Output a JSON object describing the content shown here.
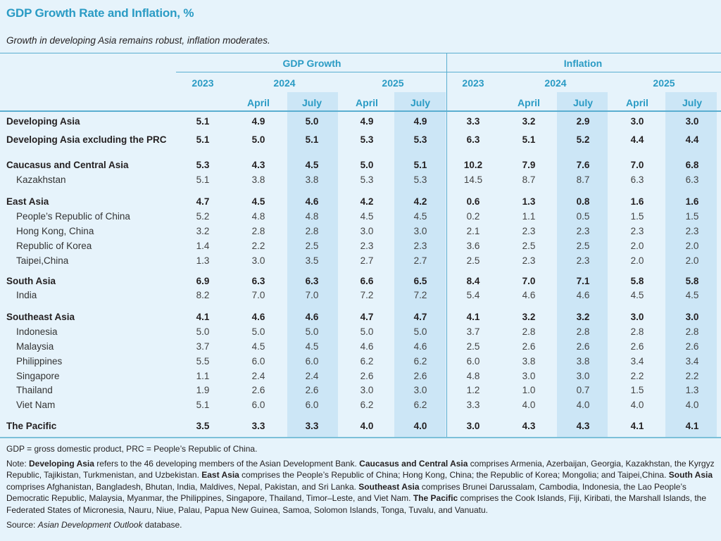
{
  "title": "GDP Growth Rate and Inflation, %",
  "subtitle": "Growth in developing Asia remains robust, inflation moderates.",
  "colors": {
    "accent": "#2a9bc4",
    "background": "#e6f3fb",
    "highlight": "#cce6f6",
    "rule": "#5aaed0"
  },
  "header": {
    "groups": [
      "GDP Growth",
      "Inflation"
    ],
    "years": [
      "2023",
      "2024",
      "2025",
      "2023",
      "2024",
      "2025"
    ],
    "months": [
      "April",
      "July",
      "April",
      "July",
      "April",
      "July",
      "April",
      "July"
    ]
  },
  "rows": [
    {
      "label": "Developing Asia",
      "level": "region",
      "values": [
        "5.1",
        "4.9",
        "5.0",
        "4.9",
        "4.9",
        "3.3",
        "3.2",
        "2.9",
        "3.0",
        "3.0"
      ]
    },
    {
      "label": "Developing Asia excluding the PRC",
      "level": "region",
      "values": [
        "5.1",
        "5.0",
        "5.1",
        "5.3",
        "5.3",
        "6.3",
        "5.1",
        "5.2",
        "4.4",
        "4.4"
      ]
    },
    {
      "label": "Caucasus and Central Asia",
      "level": "region",
      "values": [
        "5.3",
        "4.3",
        "4.5",
        "5.0",
        "5.1",
        "10.2",
        "7.9",
        "7.6",
        "7.0",
        "6.8"
      ]
    },
    {
      "label": "Kazakhstan",
      "level": "economy",
      "values": [
        "5.1",
        "3.8",
        "3.8",
        "5.3",
        "5.3",
        "14.5",
        "8.7",
        "8.7",
        "6.3",
        "6.3"
      ]
    },
    {
      "label": "East Asia",
      "level": "region",
      "values": [
        "4.7",
        "4.5",
        "4.6",
        "4.2",
        "4.2",
        "0.6",
        "1.3",
        "0.8",
        "1.6",
        "1.6"
      ]
    },
    {
      "label": "People’s Republic of China",
      "level": "economy",
      "values": [
        "5.2",
        "4.8",
        "4.8",
        "4.5",
        "4.5",
        "0.2",
        "1.1",
        "0.5",
        "1.5",
        "1.5"
      ]
    },
    {
      "label": "Hong Kong, China",
      "level": "economy",
      "values": [
        "3.2",
        "2.8",
        "2.8",
        "3.0",
        "3.0",
        "2.1",
        "2.3",
        "2.3",
        "2.3",
        "2.3"
      ]
    },
    {
      "label": "Republic of Korea",
      "level": "economy",
      "values": [
        "1.4",
        "2.2",
        "2.5",
        "2.3",
        "2.3",
        "3.6",
        "2.5",
        "2.5",
        "2.0",
        "2.0"
      ]
    },
    {
      "label": "Taipei,China",
      "level": "economy",
      "values": [
        "1.3",
        "3.0",
        "3.5",
        "2.7",
        "2.7",
        "2.5",
        "2.3",
        "2.3",
        "2.0",
        "2.0"
      ]
    },
    {
      "label": "South Asia",
      "level": "region",
      "values": [
        "6.9",
        "6.3",
        "6.3",
        "6.6",
        "6.5",
        "8.4",
        "7.0",
        "7.1",
        "5.8",
        "5.8"
      ]
    },
    {
      "label": "India",
      "level": "economy",
      "values": [
        "8.2",
        "7.0",
        "7.0",
        "7.2",
        "7.2",
        "5.4",
        "4.6",
        "4.6",
        "4.5",
        "4.5"
      ]
    },
    {
      "label": "Southeast Asia",
      "level": "region",
      "values": [
        "4.1",
        "4.6",
        "4.6",
        "4.7",
        "4.7",
        "4.1",
        "3.2",
        "3.2",
        "3.0",
        "3.0"
      ]
    },
    {
      "label": "Indonesia",
      "level": "economy",
      "values": [
        "5.0",
        "5.0",
        "5.0",
        "5.0",
        "5.0",
        "3.7",
        "2.8",
        "2.8",
        "2.8",
        "2.8"
      ]
    },
    {
      "label": "Malaysia",
      "level": "economy",
      "values": [
        "3.7",
        "4.5",
        "4.5",
        "4.6",
        "4.6",
        "2.5",
        "2.6",
        "2.6",
        "2.6",
        "2.6"
      ]
    },
    {
      "label": "Philippines",
      "level": "economy",
      "values": [
        "5.5",
        "6.0",
        "6.0",
        "6.2",
        "6.2",
        "6.0",
        "3.8",
        "3.8",
        "3.4",
        "3.4"
      ]
    },
    {
      "label": "Singapore",
      "level": "economy",
      "values": [
        "1.1",
        "2.4",
        "2.4",
        "2.6",
        "2.6",
        "4.8",
        "3.0",
        "3.0",
        "2.2",
        "2.2"
      ]
    },
    {
      "label": "Thailand",
      "level": "economy",
      "values": [
        "1.9",
        "2.6",
        "2.6",
        "3.0",
        "3.0",
        "1.2",
        "1.0",
        "0.7",
        "1.5",
        "1.3"
      ]
    },
    {
      "label": "Viet Nam",
      "level": "economy",
      "values": [
        "5.1",
        "6.0",
        "6.0",
        "6.2",
        "6.2",
        "3.3",
        "4.0",
        "4.0",
        "4.0",
        "4.0"
      ]
    },
    {
      "label": "The Pacific",
      "level": "region",
      "values": [
        "3.5",
        "3.3",
        "3.3",
        "4.0",
        "4.0",
        "3.0",
        "4.3",
        "4.3",
        "4.1",
        "4.1"
      ]
    }
  ],
  "notes": {
    "abbreviations": "GDP = gross domestic product, PRC = People’s Republic of China.",
    "note_prefix": "Note: ",
    "note_parts": [
      {
        "bold": "Developing Asia",
        "text": " refers to the 46 developing members of the Asian Development Bank. "
      },
      {
        "bold": "Caucasus and Central Asia",
        "text": " comprises Armenia, Azerbaijan, Georgia, Kazakhstan, the Kyrgyz Republic, Tajikistan, Turkmenistan, and Uzbekistan. "
      },
      {
        "bold": "East Asia",
        "text": " comprises the People’s Republic of China; Hong Kong, China; the Republic of Korea; Mongolia; and Taipei,China. "
      },
      {
        "bold": "South Asia",
        "text": " comprises Afghanistan, Bangladesh, Bhutan, India, Maldives, Nepal, Pakistan, and Sri Lanka. "
      },
      {
        "bold": "Southeast Asia",
        "text": " comprises Brunei Darussalam, Cambodia, Indonesia, the Lao People’s Democratic Republic, Malaysia, Myanmar, the Philippines, Singapore, Thailand, Timor–Leste, and Viet Nam. "
      },
      {
        "bold": "The Pacific",
        "text": " comprises the Cook Islands, Fiji, Kiribati, the Marshall Islands, the Federated States of Micronesia, Nauru, Niue, Palau, Papua New Guinea, Samoa, Solomon Islands, Tonga, Tuvalu, and Vanuatu."
      }
    ],
    "source_prefix": "Source: ",
    "source_italic": "Asian Development Outlook",
    "source_suffix": " database."
  }
}
